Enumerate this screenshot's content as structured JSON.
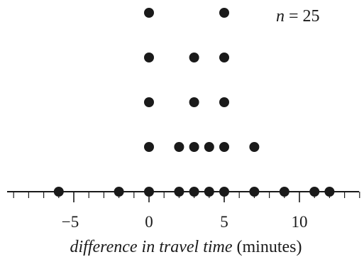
{
  "chart_data": {
    "type": "dot plot",
    "xlabel_italic": "difference in travel time",
    "xlabel_unit": " (minutes)",
    "annotation": {
      "italic": "n",
      "text": " = 25"
    },
    "xlim": [
      -9,
      14
    ],
    "major_ticks": [
      -5,
      0,
      5,
      10
    ],
    "tick_labels": [
      "−5",
      "0",
      "5",
      "10"
    ],
    "minor_tick_step": 1,
    "points": [
      {
        "x": -6,
        "count": 1
      },
      {
        "x": -2,
        "count": 1
      },
      {
        "x": 0,
        "count": 5
      },
      {
        "x": 2,
        "count": 2
      },
      {
        "x": 3,
        "count": 4
      },
      {
        "x": 4,
        "count": 2
      },
      {
        "x": 5,
        "count": 5
      },
      {
        "x": 7,
        "count": 2
      },
      {
        "x": 9,
        "count": 1
      },
      {
        "x": 11,
        "count": 1
      },
      {
        "x": 12,
        "count": 1
      }
    ],
    "colors": {
      "dot": "#1a1a1a",
      "axis": "#1a1a1a",
      "background": "#ffffff"
    }
  }
}
